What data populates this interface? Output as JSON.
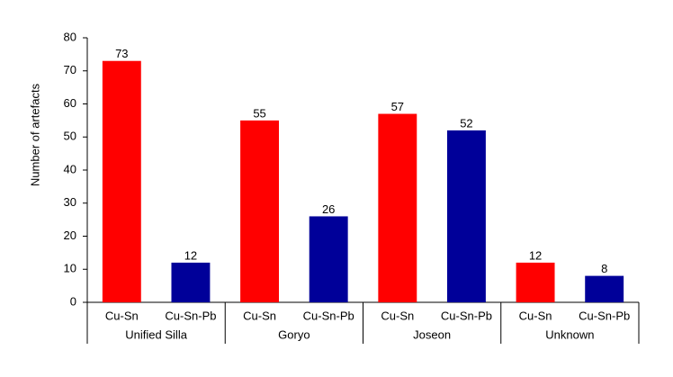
{
  "chart_data": {
    "type": "bar",
    "y_label": "Number of artefacts",
    "categories": [
      "Cu-Sn",
      "Cu-Sn-Pb",
      "Cu-Sn",
      "Cu-Sn-Pb",
      "Cu-Sn",
      "Cu-Sn-Pb",
      "Cu-Sn",
      "Cu-Sn-Pb"
    ],
    "groups": [
      "Unified Silla",
      "Goryo",
      "Joseon",
      "Unknown"
    ],
    "values": [
      73,
      12,
      55,
      26,
      57,
      52,
      12,
      8
    ],
    "colors": [
      "#ff0000",
      "#000099",
      "#ff0000",
      "#000099",
      "#ff0000",
      "#000099",
      "#ff0000",
      "#000099"
    ],
    "ylim": [
      0,
      80
    ],
    "yticks": [
      0,
      10,
      20,
      30,
      40,
      50,
      60,
      70,
      80
    ],
    "grid": false
  }
}
